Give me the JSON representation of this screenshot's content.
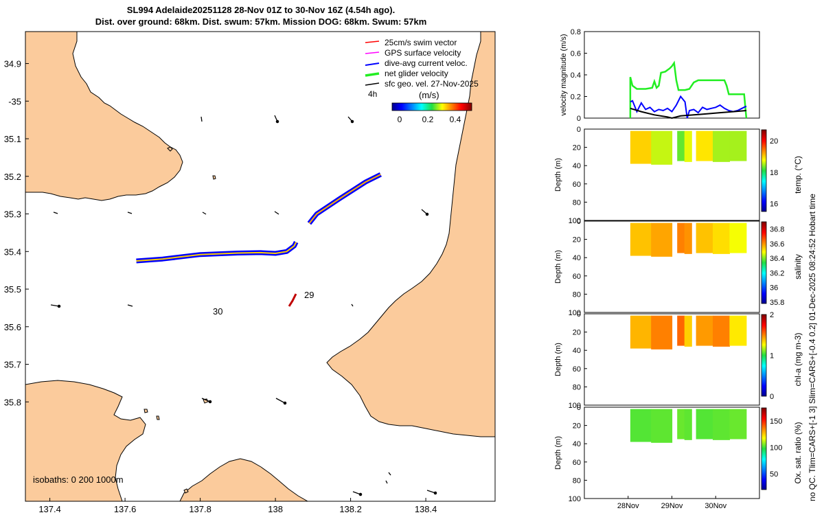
{
  "title": {
    "line1": "SL994 Adelaide20251128 28-Nov 01Z to 30-Nov 16Z (4.54h ago).",
    "line2": "Dist. over ground: 68km. Dist. swum: 57km. Mission DOG: 68km. Swum: 57km"
  },
  "colors": {
    "land": "#fbcb9c",
    "track_blue": "#0000ff",
    "net_green": "#22ee22",
    "black": "#000000",
    "swim_red": "#ff0000",
    "gps_magenta": "#ff00ff"
  },
  "chart_data": [
    {
      "type": "map",
      "lon_ticks": [
        "137.4",
        "137.6",
        "137.8",
        "138",
        "138.2",
        "138.4"
      ],
      "lat_ticks": [
        "34.9",
        "-35",
        "35.1",
        "35.2",
        "35.3",
        "35.4",
        "35.5",
        "35.6",
        "35.7",
        "35.8"
      ],
      "legend": [
        "25cm/s swim vector",
        "GPS surface velocity",
        "dive-avg current veloc.",
        "net glider velocity",
        "sfc geo. vel. 27-Nov-2025"
      ],
      "time_label": "4h",
      "colorbar_label": "(m/s)",
      "colorbar_ticks": [
        "0",
        "0.2",
        "0.4"
      ],
      "isobaths": "isobaths: 0   200  1000m",
      "track_labels": [
        "29",
        "30"
      ],
      "track_east": [
        [
          138.28,
          -35.195
        ],
        [
          138.24,
          -35.215
        ],
        [
          138.17,
          -35.26
        ],
        [
          138.11,
          -35.3
        ],
        [
          138.09,
          -35.325
        ]
      ],
      "track_west": [
        [
          137.63,
          -35.425
        ],
        [
          137.7,
          -35.42
        ],
        [
          137.8,
          -35.408
        ],
        [
          137.9,
          -35.404
        ],
        [
          137.96,
          -35.403
        ],
        [
          138.0,
          -35.405
        ],
        [
          138.03,
          -35.4
        ],
        [
          138.05,
          -35.385
        ],
        [
          138.055,
          -35.375
        ]
      ]
    },
    {
      "type": "line",
      "ylabel": "velocity magnitude (m/s)",
      "ylim": [
        0,
        0.8
      ],
      "yticks": [
        "0",
        "0.2",
        "0.4",
        "0.6",
        "0.8"
      ],
      "xlim": [
        27.0,
        31.0
      ],
      "series": [
        {
          "name": "net glider velocity",
          "color": "#22ee22",
          "x": [
            28.05,
            28.05,
            28.1,
            28.2,
            28.3,
            28.4,
            28.55,
            28.6,
            28.65,
            28.7,
            28.75,
            28.85,
            28.95,
            29.0,
            29.05,
            29.1,
            29.15,
            29.2,
            29.3,
            29.4,
            29.5,
            29.6,
            29.8,
            30.0,
            30.2,
            30.25,
            30.3,
            30.35,
            30.4,
            30.5,
            30.6,
            30.65,
            30.7
          ],
          "y": [
            0.0,
            0.38,
            0.3,
            0.27,
            0.27,
            0.27,
            0.28,
            0.34,
            0.28,
            0.3,
            0.42,
            0.43,
            0.46,
            0.48,
            0.51,
            0.35,
            0.26,
            0.26,
            0.26,
            0.27,
            0.33,
            0.35,
            0.35,
            0.35,
            0.35,
            0.3,
            0.22,
            0.22,
            0.22,
            0.22,
            0.22,
            0.22,
            0.0
          ]
        },
        {
          "name": "dive-avg current veloc.",
          "color": "#0000ff",
          "x": [
            28.05,
            28.1,
            28.2,
            28.3,
            28.4,
            28.5,
            28.6,
            28.7,
            28.8,
            28.9,
            29.0,
            29.1,
            29.2,
            29.3,
            29.35,
            29.4,
            29.5,
            29.6,
            29.7,
            29.8,
            29.9,
            30.0,
            30.1,
            30.2,
            30.3,
            30.4,
            30.5,
            30.6,
            30.7
          ],
          "y": [
            0.15,
            0.16,
            0.06,
            0.14,
            0.08,
            0.1,
            0.06,
            0.08,
            0.07,
            0.09,
            0.06,
            0.12,
            0.2,
            0.15,
            0.0,
            0.07,
            0.08,
            0.05,
            0.1,
            0.08,
            0.09,
            0.1,
            0.12,
            0.09,
            0.07,
            0.06,
            0.07,
            0.09,
            0.11
          ]
        },
        {
          "name": "sfc geo. vel.",
          "color": "#000000",
          "x": [
            28.05,
            28.3,
            28.6,
            28.9,
            29.0,
            29.2,
            29.5,
            29.8,
            30.1,
            30.4,
            30.7
          ],
          "y": [
            0.09,
            0.06,
            0.03,
            0.01,
            0.0,
            0.02,
            0.03,
            0.04,
            0.05,
            0.06,
            0.07
          ]
        }
      ]
    },
    {
      "type": "heatmap",
      "variable": "temp",
      "ylabel": "Depth (m)",
      "clabel": "temp. (°C)",
      "yticks": [
        "0",
        "20",
        "40",
        "60",
        "80",
        "100"
      ],
      "cticks": [
        "16",
        "18",
        "20"
      ],
      "segments": [
        [
          28.05,
          29.0,
          38
        ],
        [
          29.12,
          29.45,
          35
        ],
        [
          29.55,
          30.7,
          35
        ]
      ],
      "values": [
        19.0,
        18.6,
        18.3,
        18.7,
        18.9,
        18.5,
        18.5,
        18.4
      ]
    },
    {
      "type": "heatmap",
      "variable": "salinity",
      "ylabel": "Depth (m)",
      "clabel": "salinity",
      "yticks": [
        "0",
        "20",
        "40",
        "60",
        "80",
        "100"
      ],
      "cticks": [
        "35.8",
        "36",
        "36.2",
        "36.4",
        "36.6",
        "36.8"
      ],
      "segments": [
        [
          28.05,
          29.0,
          38
        ],
        [
          29.12,
          29.45,
          35
        ],
        [
          29.55,
          30.7,
          35
        ]
      ],
      "values": [
        36.55,
        36.58,
        36.62,
        36.6,
        36.55,
        36.52,
        36.48,
        36.45
      ]
    },
    {
      "type": "heatmap",
      "variable": "chl-a",
      "ylabel": "Depth (m)",
      "clabel": "chl-a (mg m-3)",
      "yticks": [
        "0",
        "20",
        "40",
        "60",
        "80",
        "100"
      ],
      "cticks": [
        "0",
        "1",
        "2"
      ],
      "segments": [
        [
          28.05,
          29.0,
          38
        ],
        [
          29.12,
          29.45,
          35
        ],
        [
          29.55,
          30.7,
          35
        ]
      ],
      "values": [
        1.4,
        1.5,
        1.55,
        1.35,
        1.45,
        1.5,
        1.3,
        1.1
      ]
    },
    {
      "type": "heatmap",
      "variable": "oxygen",
      "ylabel": "Depth (m)",
      "clabel": "Ox. sat. ratio (%)",
      "yticks": [
        "0",
        "20",
        "40",
        "60",
        "80",
        "100"
      ],
      "cticks": [
        "50",
        "100",
        "150"
      ],
      "segments": [
        [
          28.05,
          29.0,
          38
        ],
        [
          29.12,
          29.45,
          35
        ],
        [
          29.55,
          30.7,
          35
        ]
      ],
      "values": [
        102,
        103,
        104,
        103,
        102,
        103,
        104,
        105
      ]
    }
  ],
  "time_ticks": [
    "28Nov",
    "29Nov",
    "30Nov"
  ],
  "side_annotation": {
    "line1": "no QC. Tlim=CARS+[-1 3] Slim=CARS+[-0.4 0.2] 01-Dec-2025 08:24:52 Hobart time"
  }
}
